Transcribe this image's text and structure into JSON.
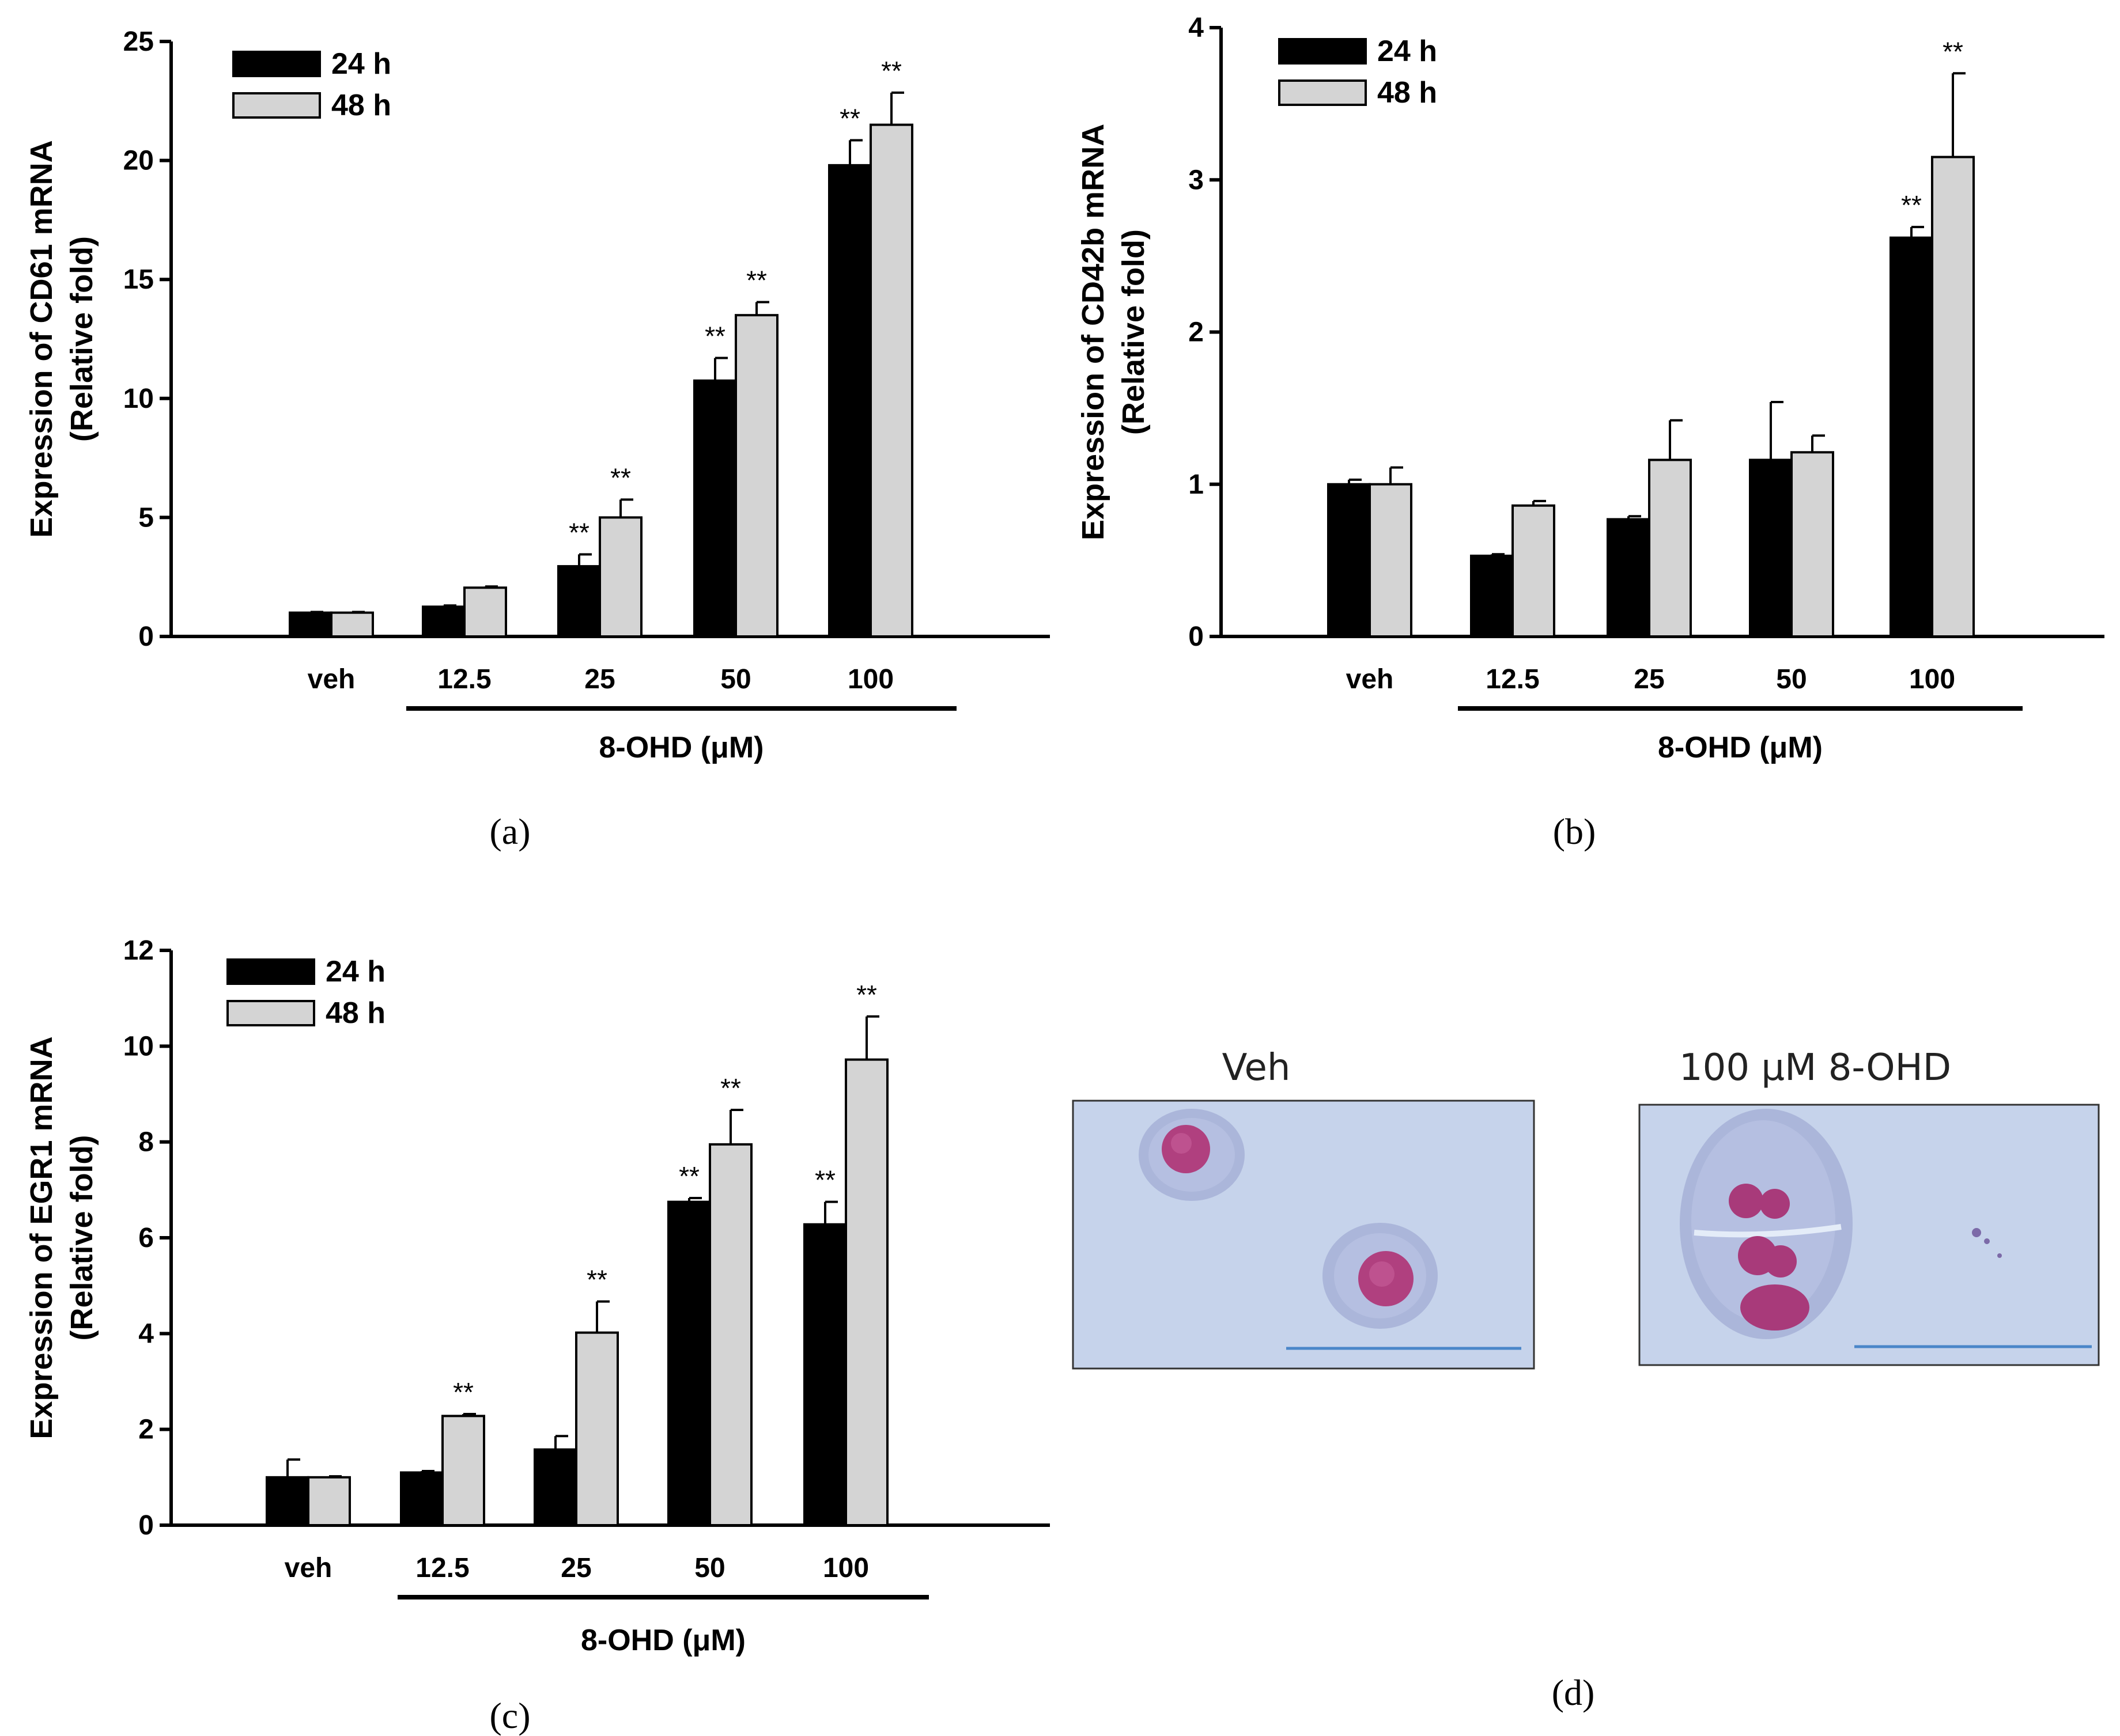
{
  "colors": {
    "series_24h": "#000000",
    "series_48h": "#d4d4d4",
    "micro_bg": "#c5d2ea",
    "cell_cytoplasm": "#a9b4da",
    "nucleus": "#b33f86",
    "scalebar": "#4a86c8"
  },
  "chart_data": [
    {
      "panel": "(a)",
      "type": "bar",
      "ylabel_line1": "Expression of CD61 mRNA",
      "ylabel_line2": "(Relative fold)",
      "xlabel": "8-OHD (μM)",
      "categories": [
        "veh",
        "12.5",
        "25",
        "50",
        "100"
      ],
      "ylim": [
        0,
        25
      ],
      "yticks": [
        "0",
        "5",
        "10",
        "15",
        "20",
        "25"
      ],
      "series": [
        {
          "name": "24 h",
          "values": [
            1.0,
            1.25,
            2.95,
            10.75,
            19.8
          ],
          "errors": [
            0.03,
            0.05,
            0.5,
            0.95,
            1.05
          ],
          "sig": [
            "",
            "",
            "**",
            "**",
            "**"
          ]
        },
        {
          "name": "48 h",
          "values": [
            1.0,
            2.05,
            5.0,
            13.5,
            21.5
          ],
          "errors": [
            0.03,
            0.05,
            0.75,
            0.55,
            1.35
          ],
          "sig": [
            "",
            "",
            "**",
            "**",
            "**"
          ]
        }
      ]
    },
    {
      "panel": "(b)",
      "type": "bar",
      "ylabel_line1": "Expression of CD42b mRNA",
      "ylabel_line2": "(Relative fold)",
      "xlabel": "8-OHD (μM)",
      "categories": [
        "veh",
        "12.5",
        "25",
        "50",
        "100"
      ],
      "ylim": [
        0,
        4
      ],
      "yticks": [
        "0",
        "1",
        "2",
        "3",
        "4"
      ],
      "series": [
        {
          "name": "24 h",
          "values": [
            1.0,
            0.53,
            0.77,
            1.16,
            2.62
          ],
          "errors": [
            0.03,
            0.01,
            0.02,
            0.38,
            0.07
          ],
          "sig": [
            "",
            "",
            "",
            "",
            "**"
          ]
        },
        {
          "name": "48 h",
          "values": [
            1.0,
            0.86,
            1.16,
            1.21,
            3.15
          ],
          "errors": [
            0.11,
            0.03,
            0.26,
            0.11,
            0.55
          ],
          "sig": [
            "",
            "",
            "",
            "",
            "**"
          ]
        }
      ]
    },
    {
      "panel": "(c)",
      "type": "bar",
      "ylabel_line1": "Expression of EGR1 mRNA",
      "ylabel_line2": "(Relative fold)",
      "xlabel": "8-OHD (μM)",
      "categories": [
        "veh",
        "12.5",
        "25",
        "50",
        "100"
      ],
      "ylim": [
        0,
        12
      ],
      "yticks": [
        "0",
        "2",
        "4",
        "6",
        "8",
        "10",
        "12"
      ],
      "series": [
        {
          "name": "24 h",
          "values": [
            1.0,
            1.1,
            1.58,
            6.75,
            6.28
          ],
          "errors": [
            0.37,
            0.03,
            0.28,
            0.08,
            0.47
          ],
          "sig": [
            "",
            "",
            "",
            "**",
            "**"
          ]
        },
        {
          "name": "48 h",
          "values": [
            1.0,
            2.28,
            4.02,
            7.95,
            9.72
          ],
          "errors": [
            0.02,
            0.04,
            0.65,
            0.72,
            0.9
          ],
          "sig": [
            "",
            "**",
            "**",
            "**",
            "**"
          ]
        }
      ]
    }
  ],
  "micrographs": {
    "panel_label": "(d)",
    "left_title": "Veh",
    "right_title": "100 μM 8-OHD"
  }
}
